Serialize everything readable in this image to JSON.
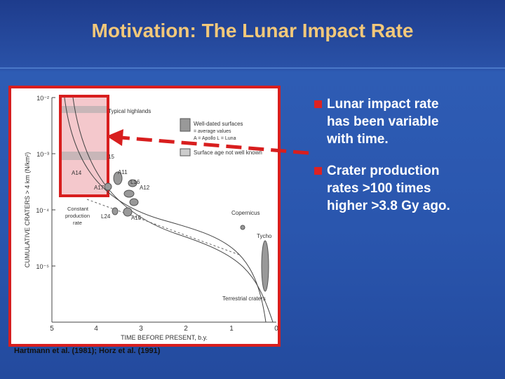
{
  "slide": {
    "title": "Motivation: The Lunar Impact Rate",
    "bullets": [
      {
        "lines": [
          "Lunar impact rate",
          "has been variable",
          "with time."
        ]
      },
      {
        "lines": [
          "Crater production",
          "rates >100 times",
          "higher >3.8 Gy ago."
        ]
      }
    ],
    "citation": "Hartmann et al. (1981); Horz et al. (1991)"
  },
  "figure": {
    "y_axis_label": "CUMULATIVE CRATERS > 4 km (N/km²)",
    "x_axis_label": "TIME BEFORE PRESENT, b.y.",
    "y_ticks": [
      "10⁻²",
      "10⁻³",
      "10⁻⁴",
      "10⁻⁵"
    ],
    "x_ticks": [
      "5",
      "4",
      "3",
      "2",
      "1",
      "0"
    ],
    "annotations": {
      "highlands": "Typical highlands",
      "a14": "A14",
      "a11": "A11",
      "l16": "L16",
      "a17": "A17",
      "a12": "A12",
      "n15": "15",
      "constant": [
        "Constant",
        "production",
        "rate"
      ],
      "l24": "L24",
      "a15": "A15",
      "copernicus": "Copernicus",
      "tycho": "Tycho",
      "terrestrial": "Terrestrial craters"
    },
    "legend": {
      "dated": "Well-dated surfaces",
      "average": "= average values",
      "key": "A = Apollo    L = Luna",
      "unknown": "Surface age not well known"
    }
  }
}
